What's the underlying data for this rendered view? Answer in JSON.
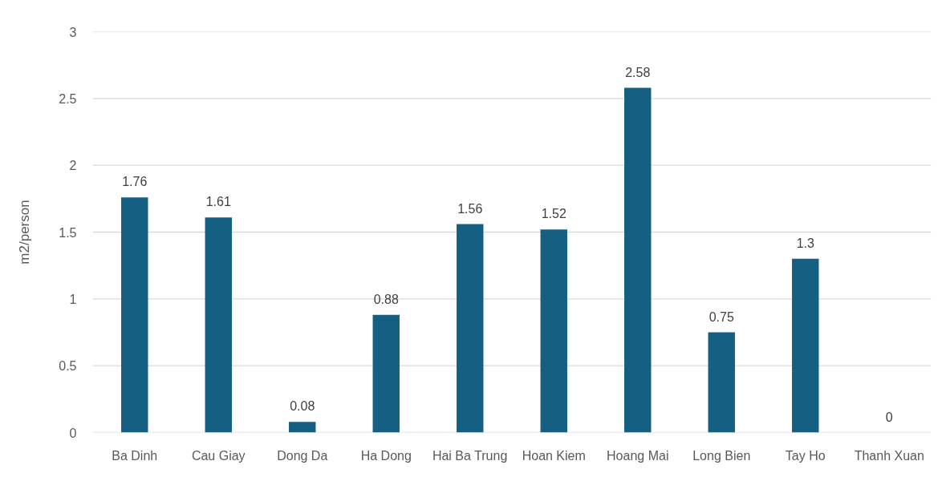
{
  "chart_data": {
    "type": "bar",
    "ylabel": "m2/person",
    "categories": [
      "Ba Dinh",
      "Cau Giay",
      "Dong Da",
      "Ha Dong",
      "Hai Ba Trung",
      "Hoan Kiem",
      "Hoang Mai",
      "Long Bien",
      "Tay Ho",
      "Thanh Xuan"
    ],
    "values": [
      1.76,
      1.61,
      0.08,
      0.88,
      1.56,
      1.52,
      2.58,
      0.75,
      1.3,
      0
    ],
    "color": "#156082",
    "ylim": [
      0,
      3
    ],
    "yticks": [
      0,
      0.5,
      1,
      1.5,
      2,
      2.5,
      3
    ],
    "grid": "y",
    "data_labels": true
  }
}
